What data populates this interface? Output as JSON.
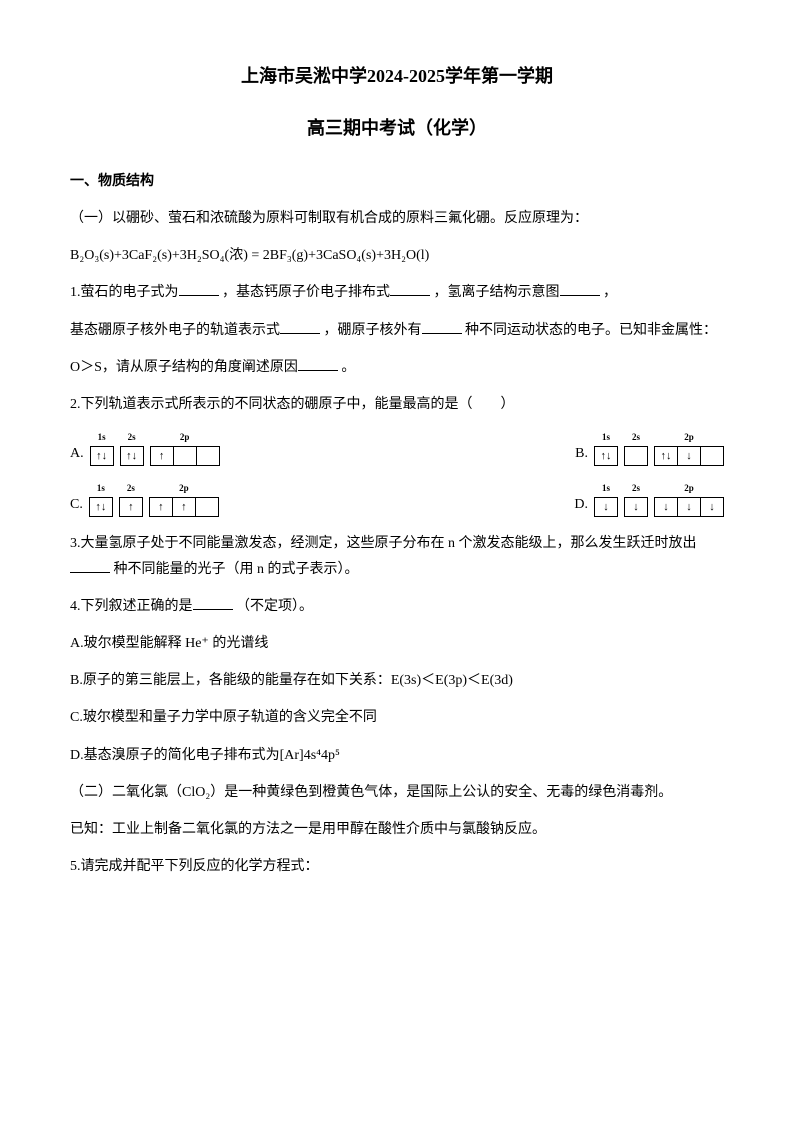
{
  "title1": "上海市吴淞中学2024-2025学年第一学期",
  "title2": "高三期中考试（化学）",
  "section1": "一、物质结构",
  "p1": "（一）以硼砂、萤石和浓硫酸为原料可制取有机合成的原料三氟化硼。反应原理为：",
  "eqn": "B₂O₃(s)+3CaF₂(s)+3H₂SO₄(浓) = 2BF₃(g)+3CaSO₄(s)+3H₂O(l)",
  "q1_a": "1.萤石的电子式为",
  "q1_b": "，基态钙原子价电子排布式",
  "q1_c": "，氢离子结构示意图",
  "q1_d": "，",
  "q1_e": "基态硼原子核外电子的轨道表示式",
  "q1_f": "，硼原子核外有",
  "q1_g": "种不同运动状态的电子。已知非金属性：",
  "q1_h": "O＞S，请从原子结构的角度阐述原因",
  "q1_i": "。",
  "q2": "2.下列轨道表示式所表示的不同状态的硼原子中，能量最高的是（　　）",
  "orbitals": {
    "labels": {
      "s1": "1s",
      "s2": "2s",
      "p2": "2p"
    },
    "width_single": 22,
    "width_p": 22,
    "A": {
      "b1s": "↑↓",
      "b2s": "↑↓",
      "b2p": [
        "↑",
        "",
        ""
      ]
    },
    "B": {
      "b1s": "↑↓",
      "b2s": "",
      "b2p": [
        "↑↓",
        "↓",
        ""
      ]
    },
    "C": {
      "b1s": "↑↓",
      "b2s": "↑",
      "b2p": [
        "↑",
        "↑",
        ""
      ]
    },
    "D": {
      "b1s": "↓",
      "b2s": "↓",
      "b2p": [
        "↓",
        "↓",
        "↓"
      ]
    }
  },
  "optA": "A.",
  "optB": "B.",
  "optC": "C.",
  "optD": "D.",
  "q3_a": "3.大量氢原子处于不同能量激发态，经测定，这些原子分布在 n 个激发态能级上，那么发生跃迁时放出",
  "q3_b": "种不同能量的光子（用 n 的式子表示）。",
  "q4": "4.下列叙述正确的是",
  "q4_tail": "（不定项）。",
  "q4A": "A.玻尔模型能解释 He⁺ 的光谱线",
  "q4B": "B.原子的第三能层上，各能级的能量存在如下关系：E(3s)＜E(3p)＜E(3d)",
  "q4C": "C.玻尔模型和量子力学中原子轨道的含义完全不同",
  "q4D": "D.基态溴原子的简化电子排布式为[Ar]4s⁴4p⁵",
  "p2": "（二）二氧化氯（ClO₂）是一种黄绿色到橙黄色气体，是国际上公认的安全、无毒的绿色消毒剂。",
  "p3": "已知：工业上制备二氧化氯的方法之一是用甲醇在酸性介质中与氯酸钠反应。",
  "q5": "5.请完成并配平下列反应的化学方程式："
}
